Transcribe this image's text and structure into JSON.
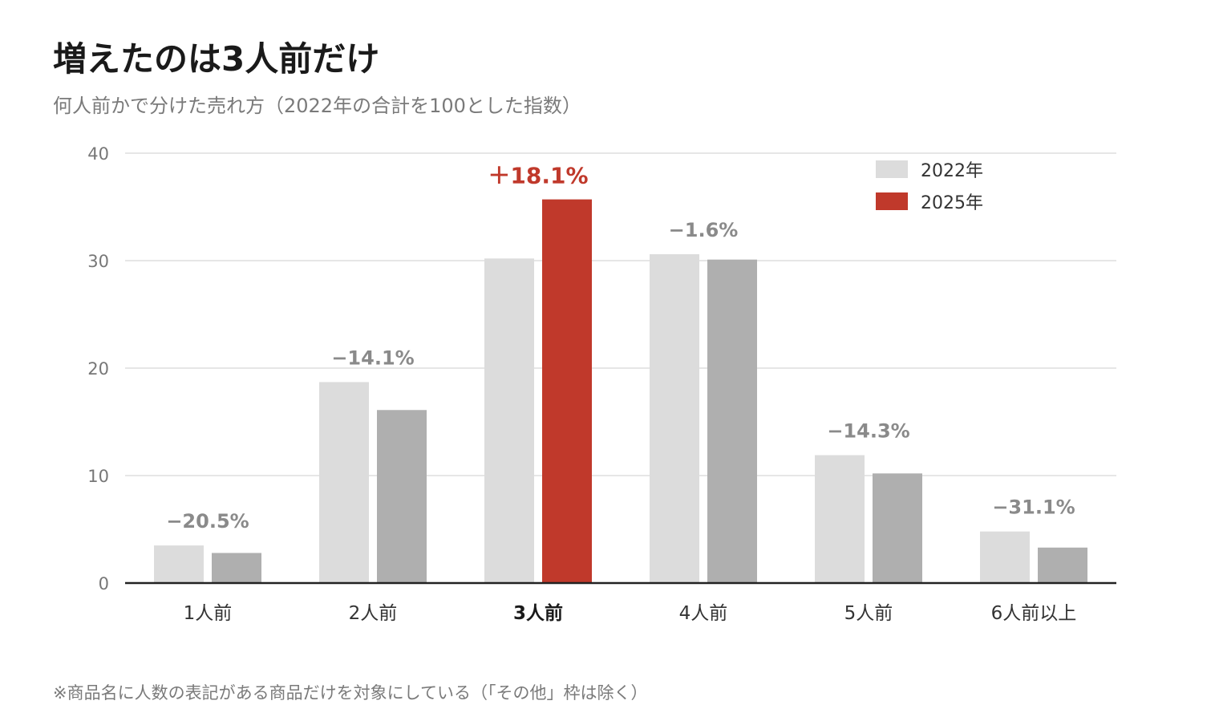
{
  "title": "増えたのは3人前だけ",
  "subtitle": "何人前かで分けた売れ方（2022年の合計を100とした指数）",
  "footnote": "※商品名に人数の表記がある商品だけを対象にしている（「その他」枠は除く）",
  "colors": {
    "series_2022": "#dcdcdc",
    "series_2025": "#afafaf",
    "highlight": "#c0392b",
    "grid": "#dddddd",
    "axis": "#222222",
    "delta_down": "#8a8a8a"
  },
  "chart_data": {
    "type": "bar",
    "categories": [
      "1人前",
      "2人前",
      "3人前",
      "4人前",
      "5人前",
      "6人前以上"
    ],
    "highlight_category": "3人前",
    "series": [
      {
        "name": "2022年",
        "values": [
          3.5,
          18.7,
          30.2,
          30.6,
          11.9,
          4.8
        ]
      },
      {
        "name": "2025年",
        "values": [
          2.8,
          16.1,
          35.7,
          30.1,
          10.2,
          3.3
        ]
      }
    ],
    "changes": [
      "−20.5%",
      "−14.1%",
      "＋18.1%",
      "−1.6%",
      "−14.3%",
      "−31.1%"
    ],
    "yticks": [
      0,
      10,
      20,
      30,
      40
    ],
    "ylim": [
      0,
      40
    ],
    "grid": true,
    "legend_position": "top-right"
  }
}
